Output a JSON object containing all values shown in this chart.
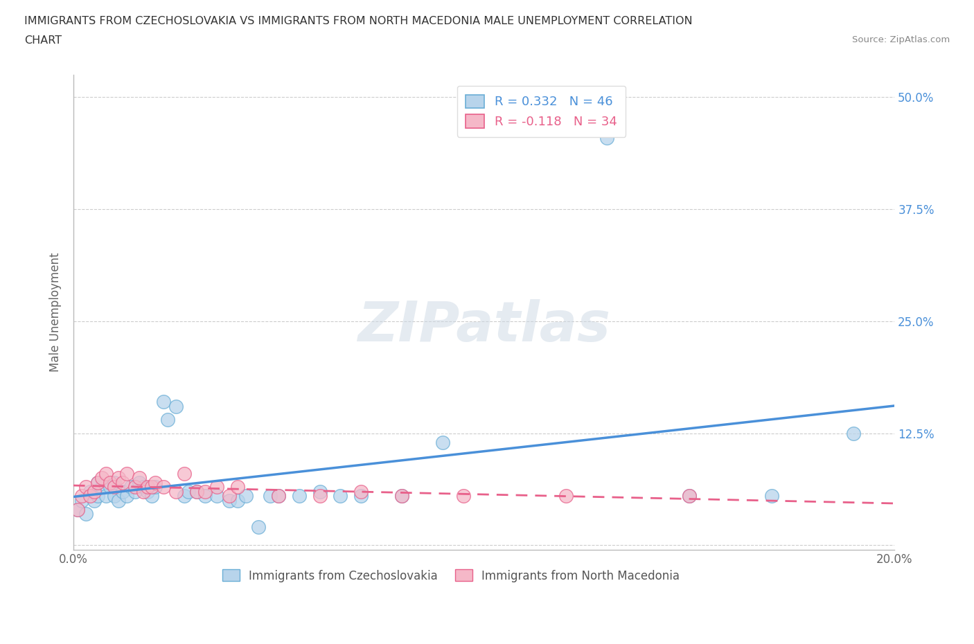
{
  "title_line1": "IMMIGRANTS FROM CZECHOSLOVAKIA VS IMMIGRANTS FROM NORTH MACEDONIA MALE UNEMPLOYMENT CORRELATION",
  "title_line2": "CHART",
  "source": "Source: ZipAtlas.com",
  "ylabel": "Male Unemployment",
  "xlim": [
    0.0,
    0.2
  ],
  "ylim": [
    -0.005,
    0.525
  ],
  "xticks": [
    0.0,
    0.05,
    0.1,
    0.15,
    0.2
  ],
  "xtick_labels": [
    "0.0%",
    "",
    "",
    "",
    "20.0%"
  ],
  "yticks": [
    0.0,
    0.125,
    0.25,
    0.375,
    0.5
  ],
  "ytick_labels": [
    "",
    "12.5%",
    "25.0%",
    "37.5%",
    "50.0%"
  ],
  "r_blue": 0.332,
  "n_blue": 46,
  "r_pink": -0.118,
  "n_pink": 34,
  "color_blue": "#b8d4eb",
  "color_pink": "#f5b8c8",
  "edge_blue": "#6aaed6",
  "edge_pink": "#e8608a",
  "line_blue": "#4a90d9",
  "line_pink": "#e8608a",
  "text_blue": "#4a90d9",
  "text_pink": "#e8608a",
  "watermark": "ZIPatlas",
  "legend_label_blue": "Immigrants from Czechoslovakia",
  "legend_label_pink": "Immigrants from North Macedonia",
  "blue_x": [
    0.001,
    0.002,
    0.003,
    0.004,
    0.005,
    0.006,
    0.006,
    0.007,
    0.008,
    0.009,
    0.01,
    0.01,
    0.011,
    0.012,
    0.013,
    0.014,
    0.015,
    0.016,
    0.017,
    0.018,
    0.019,
    0.02,
    0.022,
    0.023,
    0.025,
    0.027,
    0.028,
    0.03,
    0.032,
    0.035,
    0.038,
    0.04,
    0.042,
    0.045,
    0.048,
    0.05,
    0.055,
    0.06,
    0.065,
    0.07,
    0.08,
    0.09,
    0.13,
    0.15,
    0.17,
    0.19
  ],
  "blue_y": [
    0.04,
    0.05,
    0.035,
    0.06,
    0.05,
    0.07,
    0.055,
    0.065,
    0.055,
    0.065,
    0.07,
    0.055,
    0.05,
    0.06,
    0.055,
    0.065,
    0.06,
    0.07,
    0.065,
    0.06,
    0.055,
    0.065,
    0.16,
    0.14,
    0.155,
    0.055,
    0.06,
    0.06,
    0.055,
    0.055,
    0.05,
    0.05,
    0.055,
    0.02,
    0.055,
    0.055,
    0.055,
    0.06,
    0.055,
    0.055,
    0.055,
    0.115,
    0.455,
    0.055,
    0.055,
    0.125
  ],
  "pink_x": [
    0.001,
    0.002,
    0.003,
    0.004,
    0.005,
    0.006,
    0.007,
    0.008,
    0.009,
    0.01,
    0.011,
    0.012,
    0.013,
    0.015,
    0.016,
    0.017,
    0.018,
    0.019,
    0.02,
    0.022,
    0.025,
    0.027,
    0.03,
    0.032,
    0.035,
    0.038,
    0.04,
    0.05,
    0.06,
    0.07,
    0.08,
    0.095,
    0.12,
    0.15
  ],
  "pink_y": [
    0.04,
    0.055,
    0.065,
    0.055,
    0.06,
    0.07,
    0.075,
    0.08,
    0.07,
    0.065,
    0.075,
    0.07,
    0.08,
    0.065,
    0.075,
    0.06,
    0.065,
    0.065,
    0.07,
    0.065,
    0.06,
    0.08,
    0.06,
    0.06,
    0.065,
    0.055,
    0.065,
    0.055,
    0.055,
    0.06,
    0.055,
    0.055,
    0.055,
    0.055
  ]
}
